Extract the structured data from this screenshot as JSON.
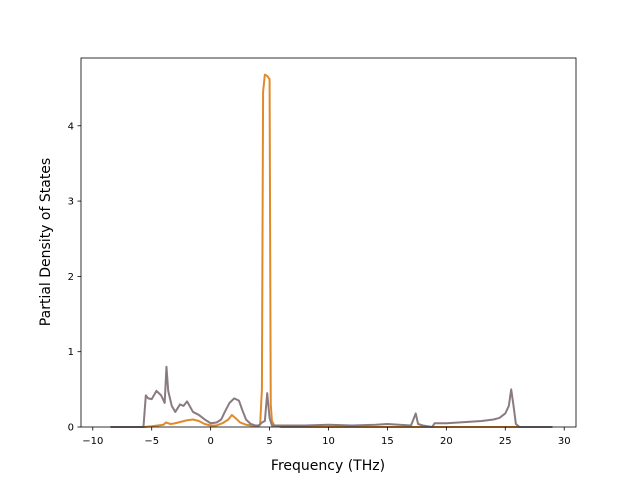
{
  "chart_data": {
    "type": "line",
    "title": "",
    "xlabel": "Frequency (THz)",
    "ylabel": "Partial Density of States",
    "xlim": [
      -11,
      31
    ],
    "ylim": [
      0,
      4.9
    ],
    "xticks": [
      -10,
      -5,
      0,
      5,
      10,
      15,
      20,
      25,
      30
    ],
    "xtick_labels": [
      "−10",
      "−5",
      "0",
      "5",
      "10",
      "15",
      "20",
      "25",
      "30"
    ],
    "yticks": [
      0,
      1,
      2,
      3,
      4
    ],
    "ytick_labels": [
      "0",
      "1",
      "2",
      "3",
      "4"
    ],
    "grid": false,
    "legend": "none",
    "series": [
      {
        "color": "#e08a2c",
        "x": [
          -8.5,
          -5.6,
          -5.0,
          -4.5,
          -4.0,
          -3.8,
          -3.4,
          -3.0,
          -2.5,
          -2.0,
          -1.5,
          -1.0,
          -0.5,
          0.0,
          0.5,
          1.0,
          1.5,
          1.8,
          2.1,
          2.5,
          3.0,
          3.5,
          4.0,
          4.2,
          4.35,
          4.45,
          4.6,
          4.8,
          5.0,
          5.1,
          5.2,
          5.4,
          5.8,
          6.0,
          10.0,
          15.0,
          17.0,
          17.5,
          18.0,
          19.0,
          20.0,
          22.0,
          24.0,
          25.0,
          25.5,
          25.8,
          26.5,
          29.0
        ],
        "y": [
          0.0,
          0.0,
          0.01,
          0.02,
          0.03,
          0.06,
          0.04,
          0.05,
          0.07,
          0.09,
          0.1,
          0.08,
          0.04,
          0.02,
          0.02,
          0.05,
          0.1,
          0.16,
          0.12,
          0.06,
          0.03,
          0.02,
          0.02,
          0.03,
          0.5,
          4.45,
          4.68,
          4.66,
          4.62,
          0.3,
          0.08,
          0.02,
          0.01,
          0.0,
          0.0,
          0.0,
          0.0,
          0.0,
          0.0,
          0.0,
          0.0,
          0.0,
          0.0,
          0.0,
          0.0,
          0.0,
          0.0,
          0.0
        ]
      },
      {
        "color": "#8a7b80",
        "x": [
          -8.5,
          -5.7,
          -5.5,
          -5.3,
          -5.0,
          -4.6,
          -4.2,
          -3.9,
          -3.75,
          -3.6,
          -3.3,
          -3.0,
          -2.6,
          -2.3,
          -2.0,
          -1.5,
          -1.0,
          -0.5,
          0.0,
          0.5,
          0.9,
          1.2,
          1.6,
          2.0,
          2.4,
          2.7,
          3.0,
          3.4,
          3.8,
          4.1,
          4.35,
          4.6,
          4.8,
          5.0,
          5.2,
          5.4,
          6.0,
          8.0,
          10.0,
          12.0,
          14.0,
          15.0,
          17.0,
          17.2,
          17.4,
          17.6,
          18.0,
          18.8,
          19.0,
          20.0,
          21.0,
          22.0,
          23.0,
          24.0,
          24.5,
          25.0,
          25.3,
          25.5,
          25.7,
          25.9,
          26.2,
          27.0,
          29.0
        ],
        "y": [
          0.0,
          0.0,
          0.42,
          0.38,
          0.37,
          0.48,
          0.42,
          0.32,
          0.8,
          0.48,
          0.28,
          0.2,
          0.3,
          0.28,
          0.34,
          0.2,
          0.16,
          0.1,
          0.05,
          0.06,
          0.1,
          0.2,
          0.32,
          0.38,
          0.35,
          0.22,
          0.1,
          0.04,
          0.02,
          0.02,
          0.06,
          0.08,
          0.45,
          0.12,
          0.02,
          0.02,
          0.02,
          0.02,
          0.03,
          0.02,
          0.03,
          0.04,
          0.02,
          0.1,
          0.18,
          0.04,
          0.02,
          0.0,
          0.05,
          0.05,
          0.06,
          0.07,
          0.08,
          0.1,
          0.12,
          0.18,
          0.28,
          0.5,
          0.28,
          0.04,
          0.0,
          0.0,
          0.0
        ]
      }
    ]
  }
}
